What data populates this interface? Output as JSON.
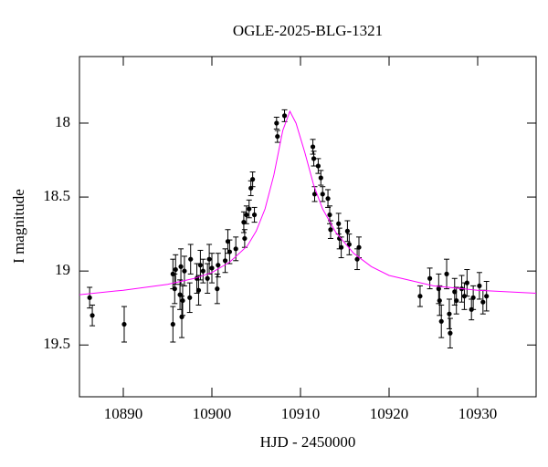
{
  "chart_data": {
    "type": "scatter",
    "title": "OGLE-2025-BLG-1321",
    "x_label": "HJD - 2450000",
    "y_label": "I magnitude",
    "xlim": [
      10885.05,
      10936.6
    ],
    "xticks": [
      10890,
      10900,
      10910,
      10920,
      10930
    ],
    "ylim": [
      17.55,
      19.85
    ],
    "yticks": [
      18,
      18.5,
      19,
      19.5
    ],
    "invert_y": true,
    "series": [
      {
        "type": "scatter",
        "color": "#000000",
        "x": [
          10886.2,
          10886.5,
          10890.1,
          10895.6,
          10895.6,
          10895.8,
          10895.9,
          10896.4,
          10896.5,
          10896.6,
          10896.7,
          10896.9,
          10897.5,
          10897.6,
          10898.3,
          10898.5,
          10898.7,
          10899.0,
          10899.5,
          10899.7,
          10900.0,
          10900.6,
          10900.7,
          10901.5,
          10901.8,
          10902.0,
          10902.7,
          10903.6,
          10903.7,
          10903.9,
          10904.2,
          10904.4,
          10904.6,
          10904.8,
          10907.3,
          10907.4,
          10908.2,
          10911.4,
          10911.5,
          10911.6,
          10912.0,
          10912.3,
          10912.5,
          10913.1,
          10913.3,
          10913.4,
          10914.3,
          10914.4,
          10914.6,
          10915.3,
          10915.5,
          10916.4,
          10916.6,
          10923.5,
          10924.6,
          10925.6,
          10925.7,
          10925.9,
          10926.5,
          10926.8,
          10926.9,
          10927.4,
          10927.6,
          10928.2,
          10928.5,
          10928.8,
          10929.3,
          10929.5,
          10930.2,
          10930.6,
          10931.0
        ],
        "values": [
          19.18,
          19.3,
          19.36,
          19.02,
          19.36,
          19.12,
          18.99,
          19.16,
          18.97,
          19.31,
          19.2,
          19.0,
          19.18,
          18.92,
          19.05,
          19.13,
          18.96,
          19.0,
          19.05,
          18.92,
          18.98,
          19.12,
          18.96,
          18.93,
          18.8,
          18.87,
          18.85,
          18.67,
          18.78,
          18.62,
          18.58,
          18.44,
          18.38,
          18.62,
          18.0,
          18.09,
          17.95,
          18.16,
          18.24,
          18.48,
          18.29,
          18.37,
          18.48,
          18.51,
          18.62,
          18.72,
          18.68,
          18.78,
          18.84,
          18.73,
          18.82,
          18.92,
          18.84,
          19.17,
          19.05,
          19.12,
          19.2,
          19.34,
          19.02,
          19.29,
          19.42,
          19.14,
          19.2,
          19.12,
          19.17,
          19.08,
          19.26,
          19.18,
          19.1,
          19.21,
          19.17
        ],
        "errors": [
          0.07,
          0.07,
          0.12,
          0.1,
          0.12,
          0.1,
          0.1,
          0.1,
          0.12,
          0.14,
          0.1,
          0.1,
          0.1,
          0.1,
          0.1,
          0.1,
          0.1,
          0.08,
          0.1,
          0.1,
          0.1,
          0.1,
          0.08,
          0.08,
          0.08,
          0.08,
          0.08,
          0.07,
          0.06,
          0.06,
          0.06,
          0.05,
          0.05,
          0.05,
          0.04,
          0.04,
          0.04,
          0.05,
          0.05,
          0.05,
          0.05,
          0.05,
          0.05,
          0.06,
          0.06,
          0.06,
          0.07,
          0.07,
          0.07,
          0.07,
          0.07,
          0.07,
          0.07,
          0.07,
          0.07,
          0.1,
          0.1,
          0.11,
          0.1,
          0.1,
          0.1,
          0.09,
          0.09,
          0.09,
          0.09,
          0.09,
          0.07,
          0.08,
          0.09,
          0.08,
          0.1
        ]
      },
      {
        "type": "line",
        "color": "#ff00ff",
        "x": [
          10885.05,
          10890,
          10895,
          10898,
          10900,
          10902,
          10904,
          10905,
          10906,
          10907,
          10908,
          10908.8,
          10909.5,
          10910.5,
          10911.5,
          10912.5,
          10914,
          10916,
          10918,
          10920,
          10925,
          10930,
          10936.6
        ],
        "values": [
          19.16,
          19.13,
          19.09,
          19.05,
          19.01,
          18.94,
          18.83,
          18.73,
          18.58,
          18.35,
          18.05,
          17.92,
          18.0,
          18.2,
          18.42,
          18.58,
          18.74,
          18.88,
          18.97,
          19.03,
          19.1,
          19.13,
          19.15
        ]
      }
    ]
  }
}
